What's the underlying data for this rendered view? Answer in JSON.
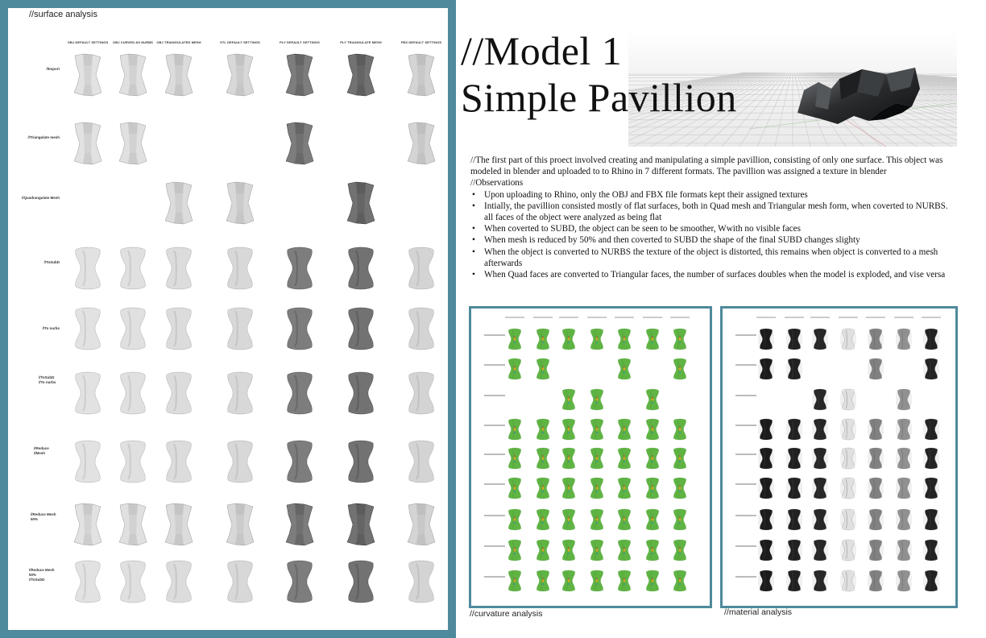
{
  "left_panel": {
    "title": "//surface analysis",
    "column_headers": [
      "OBJ DEFAULT SETTINGS",
      "OBJ CURVED AS NURBS",
      "OBJ TRIANGULATED MESH",
      "STL DEFAULT SETTINGS",
      "PLY DEFAULT SETTINGS",
      "PLY TRIANGULATE MESH",
      "FBX DEFAULT SETTINGS"
    ],
    "row_headers": [
      "//Import",
      "//Triangulate mesh",
      "//Quadrangulate Mesh",
      "//ToSubD",
      "//To nurbs",
      "//ToSubD\n//To nurbs",
      "//Reduce\n//Mesh",
      "//Reduce Mesh\n50%",
      "//Reduce Mesh\n50%\n//ToSubD"
    ]
  },
  "hero": {
    "title": "//Model 1\nSimple Pavillion"
  },
  "description": {
    "intro": "//The first part of this proect involved creating and manipulating a simple pavillion, consisting of only one surface. This object was modeled in blender and uploaded to to Rhino in 7 different formats. The pavillion was assigned a texture in blender",
    "observations_heading": "//Observations",
    "observations": [
      "Upon uploading to Rhino, only the OBJ and FBX file formats kept their assigned textures",
      "Intially, the pavillion consisted mostly of flat surfaces, both in Quad mesh and Triangular mesh form, when coverted to NURBS. all faces of the object were analyzed as being flat",
      "When coverted to SUBD, the object can be seen to be smoother, Wwith no visible faces",
      "When mesh is reduced by 50% and then coverted to SUBD the shape of the final SUBD changes slighty",
      "When the object is converted to NURBS the texture of the object is distorted, this remains when object is converted to a mesh afterwards",
      "When Quad faces are converted to Triangular faces, the number of surfaces doubles when the model is exploded, and vise versa"
    ]
  },
  "thumbnails": {
    "curvature_caption": "//curvature analysis",
    "material_caption": "//material analysis"
  },
  "colors": {
    "frame": "#4e8a9c",
    "curvature_green": "#5fb443",
    "material_dark": "#1e1e1e"
  }
}
